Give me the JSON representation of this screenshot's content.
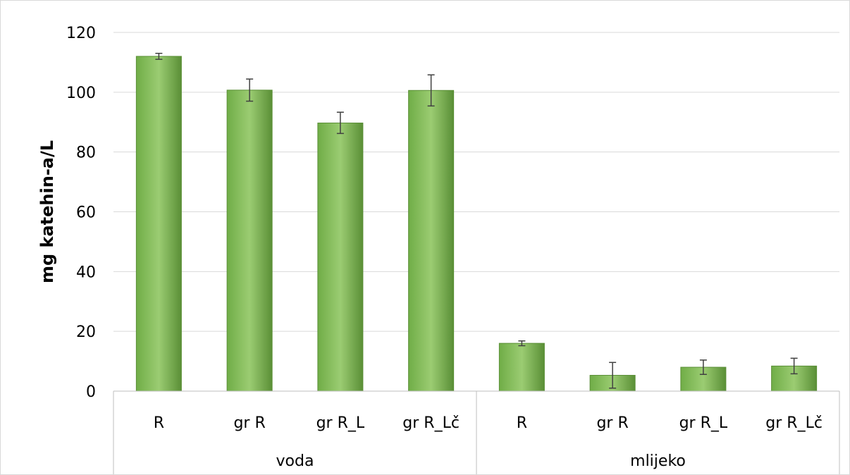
{
  "chart_data": {
    "type": "bar",
    "title": "",
    "xlabel": "",
    "ylabel": "mg katehin-a/L",
    "ylim": [
      0,
      120
    ],
    "yticks": [
      0,
      20,
      40,
      60,
      80,
      100,
      120
    ],
    "grid": true,
    "legend": "none",
    "groups": [
      "voda",
      "mlijeko"
    ],
    "categories": [
      "R",
      "gr R",
      "gr R_L",
      "gr R_Lč",
      "R",
      "gr R",
      "gr R_L",
      "gr R_Lč"
    ],
    "category_groups": [
      "voda",
      "voda",
      "voda",
      "voda",
      "mlijeko",
      "mlijeko",
      "mlijeko",
      "mlijeko"
    ],
    "values": [
      112.0,
      100.7,
      89.7,
      100.6,
      16.0,
      5.3,
      8.0,
      8.4
    ],
    "error_low": [
      111.0,
      97.0,
      86.2,
      95.4,
      15.2,
      1.0,
      5.6,
      5.8
    ],
    "error_high": [
      113.0,
      104.4,
      93.3,
      105.8,
      16.8,
      9.6,
      10.4,
      11.0
    ],
    "colors": {
      "bar": "#70ad47",
      "bar_light": "#9bcc72",
      "bar_dark": "#5a8f36",
      "error": "#404040",
      "grid": "#d9d9d9",
      "axis": "#bfbfbf"
    }
  }
}
